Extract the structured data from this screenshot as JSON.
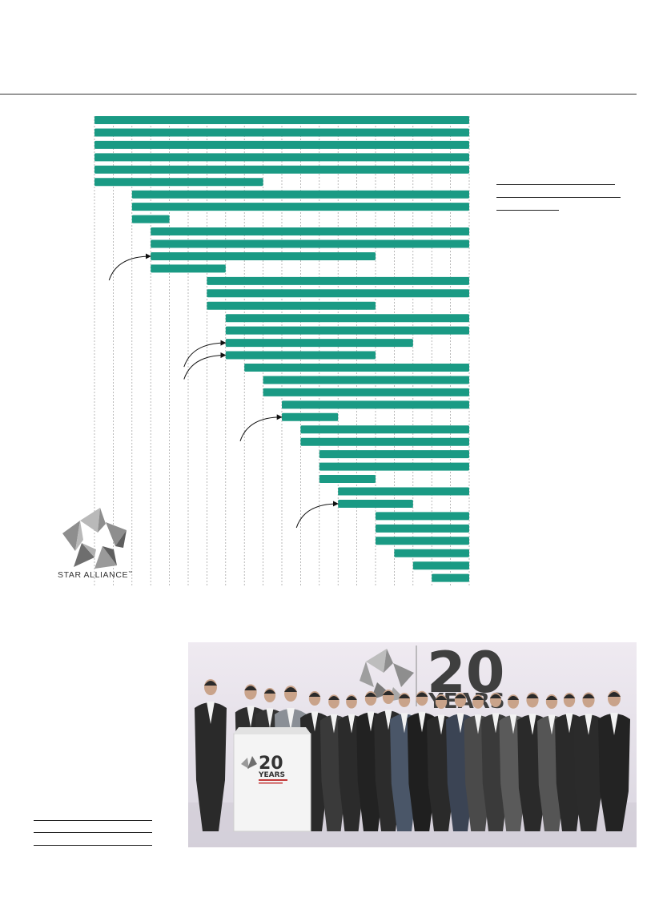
{
  "chart_data": {
    "type": "bar",
    "subtype": "timeline-gantt",
    "orientation": "horizontal",
    "xlabel": "",
    "ylabel": "",
    "xlim": [
      1997,
      2017
    ],
    "grid": true,
    "grid_style": "dotted vertical, every year",
    "bar_color": "#1a9a84",
    "series": [
      {
        "values": [
          [
            1997,
            2017
          ],
          [
            1997,
            2017
          ],
          [
            1997,
            2017
          ],
          [
            1997,
            2017
          ],
          [
            1997,
            2017
          ],
          [
            1997,
            2006
          ],
          [
            1999,
            2017
          ],
          [
            1999,
            2017
          ],
          [
            1999,
            2001
          ],
          [
            2000,
            2017
          ],
          [
            2000,
            2017
          ],
          [
            2000,
            2012
          ],
          [
            2000,
            2004
          ],
          [
            2003,
            2017
          ],
          [
            2003,
            2017
          ],
          [
            2003,
            2012
          ],
          [
            2004,
            2017
          ],
          [
            2004,
            2017
          ],
          [
            2004,
            2014
          ],
          [
            2004,
            2012
          ],
          [
            2005,
            2017
          ],
          [
            2006,
            2017
          ],
          [
            2006,
            2017
          ],
          [
            2007,
            2017
          ],
          [
            2007,
            2010
          ],
          [
            2008,
            2017
          ],
          [
            2008,
            2017
          ],
          [
            2009,
            2017
          ],
          [
            2009,
            2017
          ],
          [
            2009,
            2012
          ],
          [
            2010,
            2017
          ],
          [
            2010,
            2014
          ],
          [
            2012,
            2017
          ],
          [
            2012,
            2017
          ],
          [
            2012,
            2017
          ],
          [
            2013,
            2017
          ],
          [
            2014,
            2017
          ],
          [
            2015,
            2017
          ]
        ]
      }
    ],
    "annotations": [
      {
        "type": "arrow",
        "target_bar": 11
      },
      {
        "type": "arrow",
        "target_bar": 18
      },
      {
        "type": "arrow",
        "target_bar": 19
      },
      {
        "type": "arrow",
        "target_bar": 24
      },
      {
        "type": "arrow",
        "target_bar": 31
      }
    ]
  },
  "logo": {
    "text": "STAR ALLIANCE",
    "tm": "™",
    "colors": [
      "#b9b9b9",
      "#8e8e8e",
      "#606060"
    ]
  },
  "photo": {
    "banner_number": "20",
    "banner_word": "YEARS",
    "podium_number": "20",
    "podium_word": "YEARS",
    "background": "#ebe6ef",
    "banner_color": "#3f3f3f"
  },
  "colors": {
    "accent": "#1a9a84",
    "rule": "#333333"
  }
}
